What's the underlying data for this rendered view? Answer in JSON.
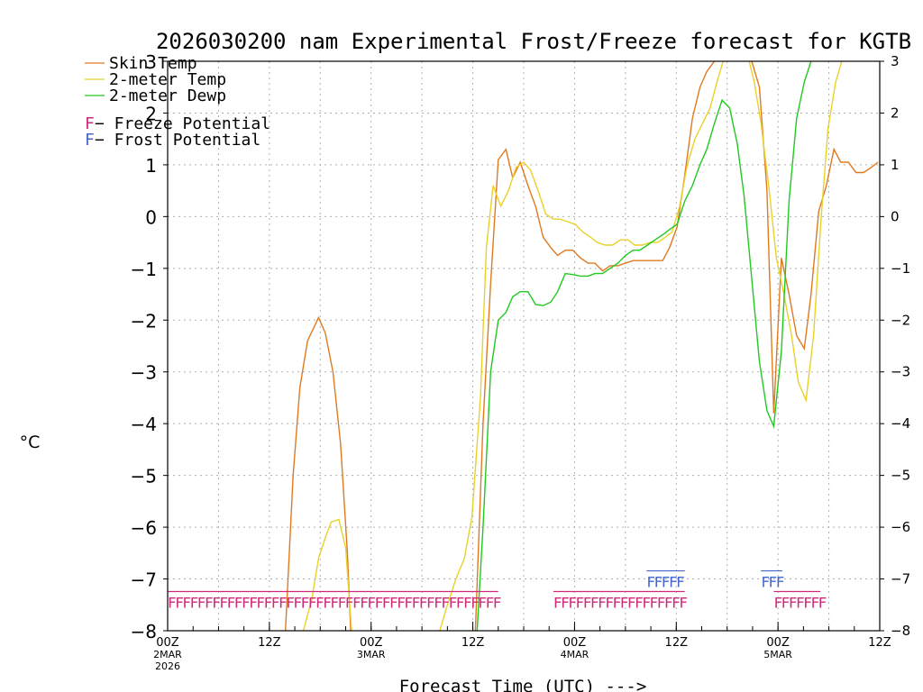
{
  "chart_data": {
    "type": "line",
    "title": "2026030200 nam Experimental Frost/Freeze forecast for KGTB",
    "xlabel": "Forecast Time (UTC) --->",
    "ylabel": "°C",
    "ylim": [
      -8,
      3
    ],
    "xlim": [
      0,
      84
    ],
    "yticks": [
      -8,
      -7,
      -6,
      -5,
      -4,
      -3,
      -2,
      -1,
      0,
      1,
      2,
      3
    ],
    "xticks": [
      {
        "hour": 0,
        "label": "00Z",
        "sub": "2MAR",
        "sub2": "2026"
      },
      {
        "hour": 12,
        "label": "12Z",
        "sub": "",
        "sub2": ""
      },
      {
        "hour": 24,
        "label": "00Z",
        "sub": "3MAR",
        "sub2": ""
      },
      {
        "hour": 36,
        "label": "12Z",
        "sub": "",
        "sub2": ""
      },
      {
        "hour": 48,
        "label": "00Z",
        "sub": "4MAR",
        "sub2": ""
      },
      {
        "hour": 60,
        "label": "12Z",
        "sub": "",
        "sub2": ""
      },
      {
        "hour": 72,
        "label": "00Z",
        "sub": "5MAR",
        "sub2": ""
      },
      {
        "hour": 84,
        "label": "12Z",
        "sub": "",
        "sub2": ""
      }
    ],
    "grid": true,
    "legend_position": "top-left",
    "series": [
      {
        "name": "Skin Temp",
        "color": "#e07a20",
        "points": [
          [
            13.9,
            -8
          ],
          [
            14.8,
            -5
          ],
          [
            15.6,
            -3.3
          ],
          [
            16.5,
            -2.4
          ],
          [
            17.8,
            -1.95
          ],
          [
            18.6,
            -2.25
          ],
          [
            19.5,
            -3.0
          ],
          [
            20.4,
            -4.4
          ],
          [
            21.2,
            -6.5
          ],
          [
            21.6,
            -8
          ],
          [
            36.3,
            -8
          ],
          [
            37.2,
            -4
          ],
          [
            38.1,
            -1.3
          ],
          [
            39.0,
            1.1
          ],
          [
            39.9,
            1.3
          ],
          [
            40.7,
            0.75
          ],
          [
            41.6,
            1.05
          ],
          [
            42.5,
            0.6
          ],
          [
            43.4,
            0.2
          ],
          [
            44.3,
            -0.4
          ],
          [
            45.2,
            -0.6
          ],
          [
            46.0,
            -0.75
          ],
          [
            46.9,
            -0.65
          ],
          [
            47.8,
            -0.65
          ],
          [
            48.7,
            -0.8
          ],
          [
            49.6,
            -0.9
          ],
          [
            50.4,
            -0.9
          ],
          [
            51.3,
            -1.05
          ],
          [
            52.2,
            -0.95
          ],
          [
            53.1,
            -0.95
          ],
          [
            54.0,
            -0.9
          ],
          [
            54.9,
            -0.85
          ],
          [
            55.7,
            -0.85
          ],
          [
            56.6,
            -0.85
          ],
          [
            57.5,
            -0.85
          ],
          [
            58.4,
            -0.85
          ],
          [
            59.2,
            -0.6
          ],
          [
            60.1,
            -0.2
          ],
          [
            61.0,
            0.8
          ],
          [
            61.9,
            1.9
          ],
          [
            62.8,
            2.5
          ],
          [
            63.6,
            2.8
          ],
          [
            64.5,
            3.0
          ],
          [
            65.4,
            3.2
          ],
          [
            66.3,
            3.3
          ],
          [
            67.2,
            3.3
          ],
          [
            68.0,
            3.3
          ],
          [
            68.9,
            3.0
          ],
          [
            69.8,
            2.5
          ],
          [
            70.7,
            0.5
          ],
          [
            71.5,
            -3.8
          ],
          [
            72.4,
            -0.8
          ],
          [
            73.3,
            -1.5
          ],
          [
            74.2,
            -2.3
          ],
          [
            75.1,
            -2.55
          ],
          [
            75.9,
            -1.5
          ],
          [
            76.8,
            0.1
          ],
          [
            77.7,
            0.6
          ],
          [
            78.6,
            1.3
          ],
          [
            79.4,
            1.05
          ],
          [
            80.3,
            1.05
          ],
          [
            81.2,
            0.85
          ],
          [
            82.1,
            0.85
          ],
          [
            83.0,
            0.95
          ],
          [
            83.8,
            1.05
          ]
        ]
      },
      {
        "name": "2-meter Temp",
        "color": "#e8d22a",
        "points": [
          [
            16.0,
            -8
          ],
          [
            17.0,
            -7.4
          ],
          [
            17.8,
            -6.6
          ],
          [
            18.6,
            -6.2
          ],
          [
            19.3,
            -5.9
          ],
          [
            20.2,
            -5.85
          ],
          [
            21.0,
            -6.4
          ],
          [
            21.7,
            -8
          ],
          [
            32.1,
            -8
          ],
          [
            33.0,
            -7.5
          ],
          [
            34.0,
            -7.0
          ],
          [
            35.0,
            -6.6
          ],
          [
            35.9,
            -5.8
          ],
          [
            36.9,
            -3.5
          ],
          [
            37.6,
            -0.6
          ],
          [
            38.4,
            0.6
          ],
          [
            39.3,
            0.2
          ],
          [
            40.2,
            0.5
          ],
          [
            41.1,
            0.95
          ],
          [
            42.0,
            1.05
          ],
          [
            42.8,
            0.9
          ],
          [
            43.7,
            0.5
          ],
          [
            44.6,
            0.05
          ],
          [
            45.5,
            -0.05
          ],
          [
            46.3,
            -0.05
          ],
          [
            47.2,
            -0.1
          ],
          [
            48.1,
            -0.15
          ],
          [
            49.0,
            -0.3
          ],
          [
            49.9,
            -0.4
          ],
          [
            50.7,
            -0.5
          ],
          [
            51.6,
            -0.55
          ],
          [
            52.5,
            -0.55
          ],
          [
            53.4,
            -0.45
          ],
          [
            54.3,
            -0.45
          ],
          [
            55.1,
            -0.55
          ],
          [
            56.0,
            -0.55
          ],
          [
            56.9,
            -0.5
          ],
          [
            57.8,
            -0.5
          ],
          [
            58.7,
            -0.4
          ],
          [
            59.5,
            -0.3
          ],
          [
            60.4,
            0.2
          ],
          [
            61.3,
            1.0
          ],
          [
            62.2,
            1.5
          ],
          [
            63.1,
            1.8
          ],
          [
            64.0,
            2.1
          ],
          [
            64.8,
            2.6
          ],
          [
            65.7,
            3.1
          ],
          [
            66.6,
            3.3
          ],
          [
            67.5,
            3.3
          ],
          [
            68.3,
            3.2
          ],
          [
            69.2,
            2.6
          ],
          [
            70.0,
            1.8
          ],
          [
            70.9,
            0.6
          ],
          [
            71.8,
            -0.8
          ],
          [
            72.7,
            -1.5
          ],
          [
            73.6,
            -2.3
          ],
          [
            74.4,
            -3.2
          ],
          [
            75.3,
            -3.55
          ],
          [
            76.2,
            -2.3
          ],
          [
            77.1,
            0.0
          ],
          [
            77.9,
            1.7
          ],
          [
            78.8,
            2.6
          ],
          [
            79.7,
            3.1
          ]
        ]
      },
      {
        "name": "2-meter Dewp",
        "color": "#22c822",
        "points": [
          [
            36.5,
            -8
          ],
          [
            37.2,
            -6.0
          ],
          [
            38.1,
            -3.0
          ],
          [
            39.0,
            -2.0
          ],
          [
            39.9,
            -1.85
          ],
          [
            40.7,
            -1.55
          ],
          [
            41.6,
            -1.45
          ],
          [
            42.5,
            -1.45
          ],
          [
            43.4,
            -1.7
          ],
          [
            44.3,
            -1.72
          ],
          [
            45.2,
            -1.65
          ],
          [
            46.0,
            -1.45
          ],
          [
            46.9,
            -1.1
          ],
          [
            47.8,
            -1.12
          ],
          [
            48.7,
            -1.15
          ],
          [
            49.6,
            -1.15
          ],
          [
            50.4,
            -1.1
          ],
          [
            51.3,
            -1.1
          ],
          [
            52.2,
            -1.0
          ],
          [
            53.1,
            -0.9
          ],
          [
            54.0,
            -0.75
          ],
          [
            54.9,
            -0.65
          ],
          [
            55.7,
            -0.65
          ],
          [
            56.6,
            -0.55
          ],
          [
            57.5,
            -0.45
          ],
          [
            58.4,
            -0.35
          ],
          [
            59.2,
            -0.25
          ],
          [
            60.1,
            -0.15
          ],
          [
            61.0,
            0.3
          ],
          [
            61.9,
            0.6
          ],
          [
            62.8,
            1.0
          ],
          [
            63.6,
            1.3
          ],
          [
            64.5,
            1.8
          ],
          [
            65.4,
            2.25
          ],
          [
            66.3,
            2.1
          ],
          [
            67.2,
            1.4
          ],
          [
            68.0,
            0.4
          ],
          [
            68.9,
            -1.2
          ],
          [
            69.8,
            -2.8
          ],
          [
            70.7,
            -3.75
          ],
          [
            71.5,
            -4.05
          ],
          [
            72.4,
            -2.6
          ],
          [
            73.3,
            0.3
          ],
          [
            74.2,
            1.9
          ],
          [
            75.1,
            2.6
          ],
          [
            75.9,
            3.0
          ],
          [
            76.8,
            3.1
          ]
        ]
      }
    ],
    "legend": [
      {
        "label": "Skin Temp",
        "color": "#e07a20"
      },
      {
        "label": "2-meter Temp",
        "color": "#e8d22a"
      },
      {
        "label": "2-meter Dewp",
        "color": "#22c822"
      }
    ],
    "potential_legend": [
      {
        "symbol": "F",
        "label": " − Freeze Potential",
        "color": "#d0287a"
      },
      {
        "symbol": "F",
        "label": " − Frost Potential",
        "color": "#4466cc"
      }
    ],
    "freeze_runs": [
      {
        "start": 0.0,
        "end": 39.0,
        "color": "#d0287a",
        "y": -7.4
      },
      {
        "start": 45.5,
        "end": 61.0,
        "color": "#d0287a",
        "y": -7.4
      },
      {
        "start": 71.5,
        "end": 77.0,
        "color": "#d0287a",
        "y": -7.4
      }
    ],
    "frost_runs": [
      {
        "start": 56.5,
        "end": 61.0,
        "color": "#4466cc",
        "y": -7.0
      },
      {
        "start": 70.0,
        "end": 72.5,
        "color": "#4466cc",
        "y": -7.0
      }
    ]
  }
}
